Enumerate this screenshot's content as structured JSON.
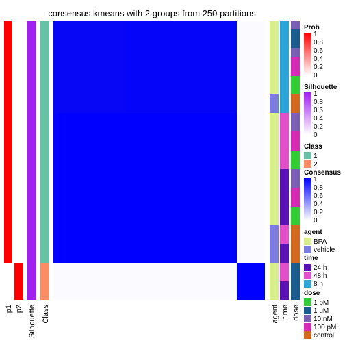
{
  "chart_data": {
    "type": "heatmap",
    "title": "consensus kmeans with 2 groups from 250 partitions",
    "consensus_blocks": [
      {
        "rows": "group-1",
        "cols": "group-1",
        "value": 1
      },
      {
        "rows": "group-1",
        "cols": "group-2",
        "value": 0
      },
      {
        "rows": "group-2",
        "cols": "group-1",
        "value": 0
      },
      {
        "rows": "group-2",
        "cols": "group-2",
        "value": 1
      }
    ],
    "left_columns": [
      "p1",
      "p2",
      "Silhouette",
      "Class"
    ],
    "right_columns": [
      "agent",
      "time",
      "dose"
    ],
    "legends": [
      {
        "title": "Prob",
        "type": "gradient",
        "ticks": [
          "1",
          "0.8",
          "0.6",
          "0.4",
          "0.2",
          "0"
        ],
        "colors": [
          "#ff0000",
          "#ffffff"
        ]
      },
      {
        "title": "Silhouette",
        "type": "gradient",
        "ticks": [
          "1",
          "0.8",
          "0.6",
          "0.4",
          "0.2",
          "0"
        ],
        "colors": [
          "#a020f0",
          "#ffffff"
        ]
      },
      {
        "title": "Class",
        "type": "discrete",
        "items": [
          {
            "label": "1",
            "color": "#66c2a5"
          },
          {
            "label": "2",
            "color": "#fc8d62"
          }
        ]
      },
      {
        "title": "Consensus",
        "type": "gradient",
        "ticks": [
          "1",
          "0.8",
          "0.6",
          "0.4",
          "0.2",
          "0"
        ],
        "colors": [
          "#0000ff",
          "#ffffff"
        ]
      },
      {
        "title": "agent",
        "type": "discrete",
        "items": [
          {
            "label": "BPA",
            "color": "#d9ef8b"
          },
          {
            "label": "vehicle",
            "color": "#7b7be0"
          }
        ]
      },
      {
        "title": "time",
        "type": "discrete",
        "items": [
          {
            "label": "24 h",
            "color": "#5b12b3"
          },
          {
            "label": "48 h",
            "color": "#e24fc9"
          },
          {
            "label": "8 h",
            "color": "#2ba5d8"
          }
        ]
      },
      {
        "title": "dose",
        "type": "discrete",
        "items": [
          {
            "label": "1 pM",
            "color": "#32cd32"
          },
          {
            "label": "1 uM",
            "color": "#1a5c8e"
          },
          {
            "label": "10 nM",
            "color": "#7a5fb5"
          },
          {
            "label": "100 pM",
            "color": "#d62ab5"
          },
          {
            "label": "control",
            "color": "#d2691e"
          }
        ]
      }
    ],
    "colors": {
      "consensus_high": "#0000ff",
      "consensus_low": "#fbfbff",
      "prob": "#ff0000",
      "silhouette": "#a020f0"
    }
  }
}
